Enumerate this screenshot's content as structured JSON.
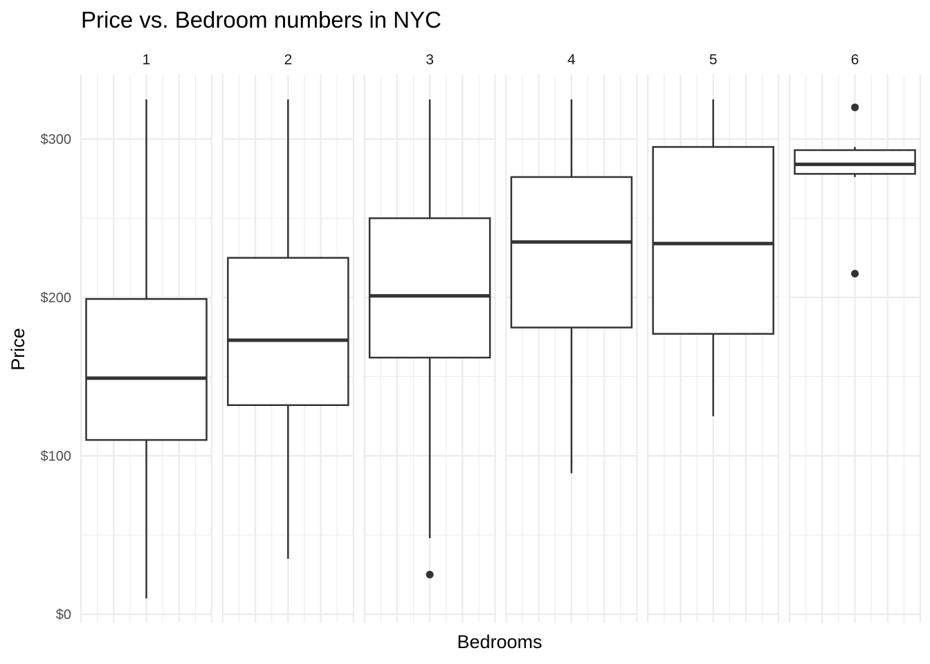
{
  "chart_data": {
    "type": "boxplot",
    "title": "Price vs. Bedroom numbers in NYC",
    "xlabel": "Bedrooms",
    "ylabel": "Price",
    "ylim": [
      0,
      325
    ],
    "y_ticks": [
      0,
      100,
      200,
      300
    ],
    "y_tick_labels": [
      "$0",
      "$100",
      "$200",
      "$300"
    ],
    "facets": [
      {
        "label": "1",
        "whisker_low": 10,
        "q1": 110,
        "median": 149,
        "q3": 199,
        "whisker_high": 325,
        "outliers": []
      },
      {
        "label": "2",
        "whisker_low": 35,
        "q1": 132,
        "median": 173,
        "q3": 225,
        "whisker_high": 325,
        "outliers": []
      },
      {
        "label": "3",
        "whisker_low": 48,
        "q1": 162,
        "median": 201,
        "q3": 250,
        "whisker_high": 325,
        "outliers": [
          25
        ]
      },
      {
        "label": "4",
        "whisker_low": 89,
        "q1": 181,
        "median": 235,
        "q3": 276,
        "whisker_high": 325,
        "outliers": []
      },
      {
        "label": "5",
        "whisker_low": 125,
        "q1": 177,
        "median": 234,
        "q3": 295,
        "whisker_high": 325,
        "outliers": []
      },
      {
        "label": "6",
        "whisker_low": 276,
        "q1": 278,
        "median": 284,
        "q3": 293,
        "whisker_high": 295,
        "outliers": [
          320,
          215
        ]
      }
    ],
    "grid": true,
    "legend": "none",
    "colors": {
      "box_stroke": "#333333",
      "box_fill": "#ffffff",
      "grid": "#ebebeb"
    }
  }
}
